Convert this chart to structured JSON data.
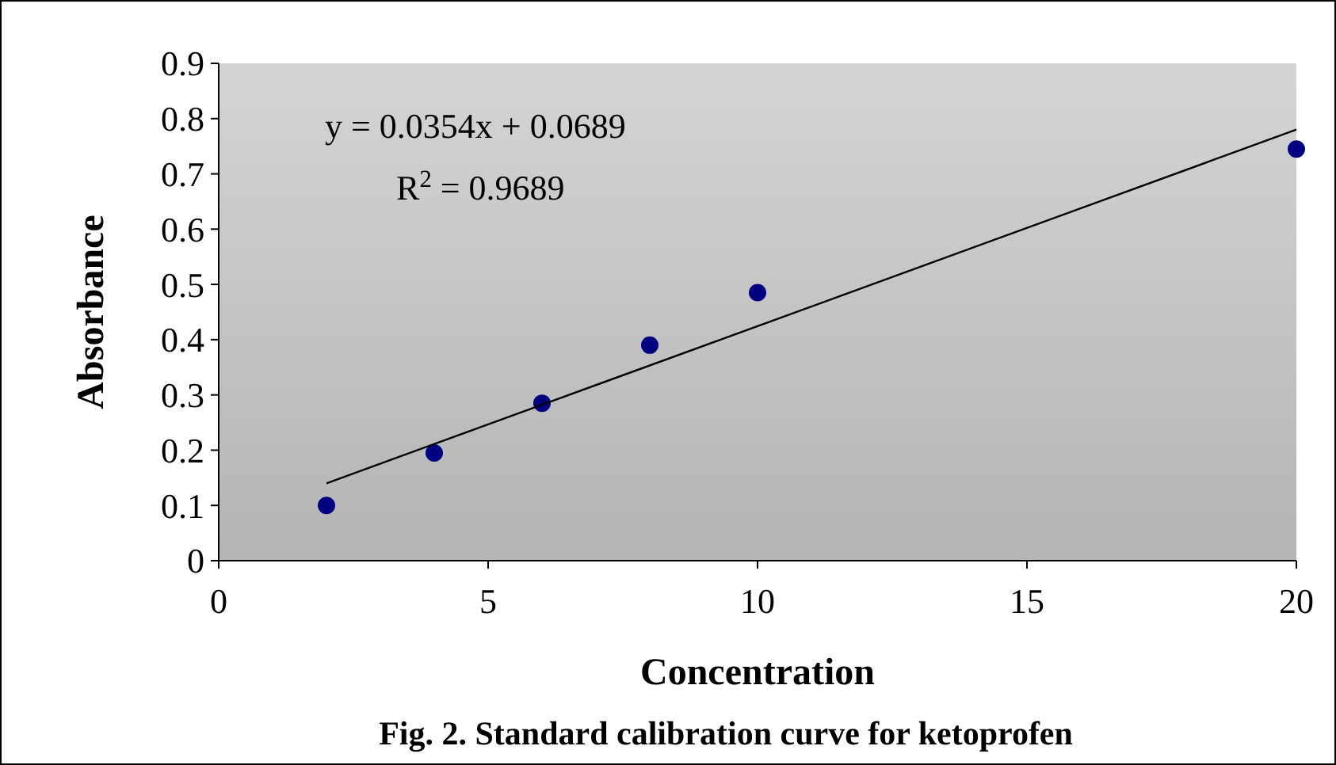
{
  "chart_data": {
    "type": "scatter",
    "xlabel": "Concentration",
    "ylabel": "Absorbance",
    "title": "Fig. 2. Standard calibration curve for ketoprofen",
    "x": [
      2,
      4,
      6,
      8,
      10,
      20
    ],
    "series": [
      {
        "color": "#000080",
        "values": [
          0.1,
          0.195,
          0.285,
          0.39,
          0.485,
          0.745
        ],
        "marker": "circle"
      },
      {
        "type": "line",
        "color": "#000000",
        "x": [
          2,
          20
        ],
        "values": [
          0.14,
          0.78
        ],
        "line_style": "solid",
        "marker": "none"
      }
    ],
    "annotations": [
      "y = 0.0354x + 0.0689",
      "R$^{2}$ = 0.9689"
    ],
    "xlim": [
      0,
      20
    ],
    "xticks": [
      0,
      5,
      10,
      15,
      20
    ],
    "ylim": [
      0,
      0.9
    ],
    "yticks": [
      0,
      0.1,
      0.2,
      0.3,
      0.4,
      0.5,
      0.6,
      0.7,
      0.8,
      0.9
    ],
    "grid": false
  }
}
